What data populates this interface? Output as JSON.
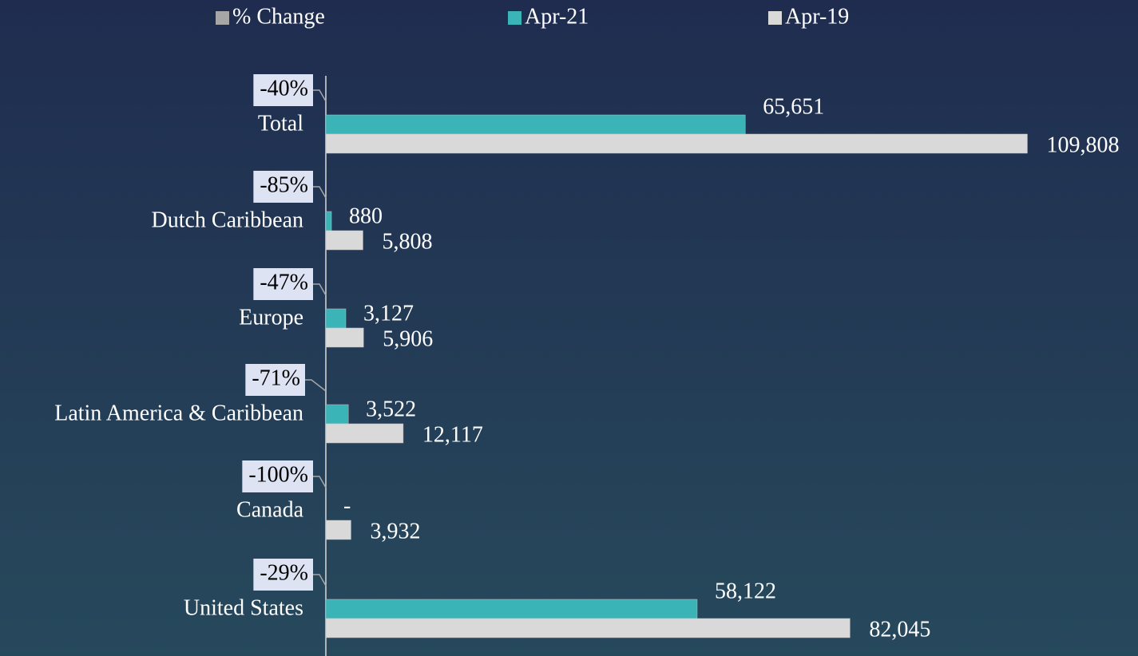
{
  "chart_data": {
    "type": "bar",
    "orientation": "horizontal",
    "categories": [
      "Total",
      "Dutch Caribbean",
      "Europe",
      "Latin America & Caribbean",
      "Canada",
      "United States"
    ],
    "series": [
      {
        "name": "% Change",
        "color": "#a6a6a6",
        "values": [
          -40,
          -85,
          -47,
          -71,
          -100,
          -29
        ],
        "value_labels": [
          "-40%",
          "-85%",
          "-47%",
          "-71%",
          "-100%",
          "-29%"
        ]
      },
      {
        "name": "Apr-21",
        "color": "#3bb4b8",
        "values": [
          65651,
          880,
          3127,
          3522,
          0,
          58122
        ],
        "value_labels": [
          "65,651",
          "880",
          "3,127",
          "3,522",
          "-",
          "58,122"
        ]
      },
      {
        "name": "Apr-19",
        "color": "#d9d9d9",
        "values": [
          109808,
          5808,
          5906,
          12117,
          3932,
          82045
        ],
        "value_labels": [
          "109,808",
          "5,808",
          "5,906",
          "12,117",
          "3,932",
          "82,045"
        ]
      }
    ],
    "xlim": [
      0,
      120000
    ],
    "legend": "top"
  }
}
